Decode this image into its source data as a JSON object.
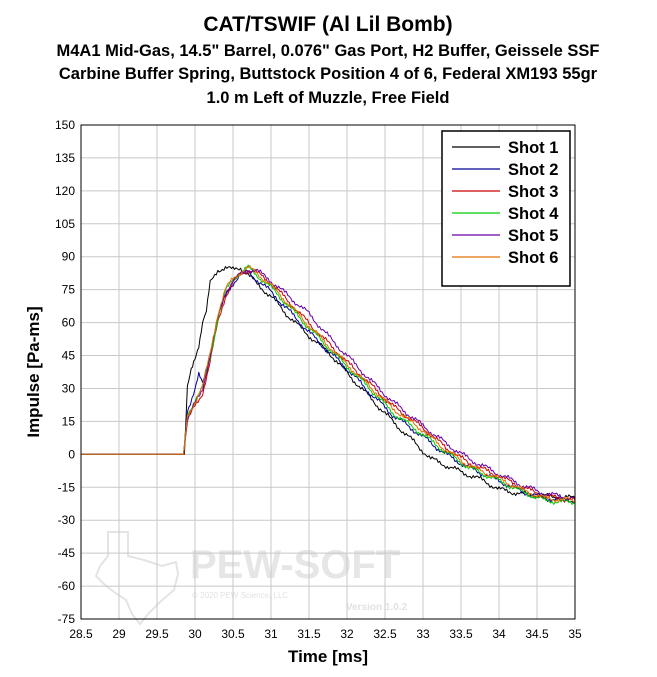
{
  "chart_data": {
    "type": "line",
    "title": "CAT/TSWIF (Al Lil Bomb)",
    "subtitle_lines": [
      "M4A1 Mid-Gas, 14.5\" Barrel, 0.076\" Gas Port, H2 Buffer, Geissele SSF",
      "Carbine Buffer Spring, Buttstock Position 4 of 6, Federal XM193 55gr",
      "1.0 m Left of Muzzle, Free Field"
    ],
    "xlabel": "Time [ms]",
    "ylabel": "Impulse [Pa-ms]",
    "xlim": [
      28.5,
      35
    ],
    "ylim": [
      -75,
      150
    ],
    "x_ticks": [
      "28.5",
      "29",
      "29.5",
      "30",
      "30.5",
      "31",
      "31.5",
      "32",
      "32.5",
      "33",
      "33.5",
      "34",
      "34.5",
      "35"
    ],
    "y_ticks": [
      "150",
      "135",
      "120",
      "105",
      "90",
      "75",
      "60",
      "45",
      "30",
      "15",
      "0",
      "-15",
      "-30",
      "-45",
      "-60",
      "-75"
    ],
    "grid": true,
    "legend_position": "top-right",
    "series": [
      {
        "name": "Shot 1",
        "color": "#000000",
        "x": [
          28.5,
          29.3,
          29.8,
          29.86,
          29.9,
          29.95,
          30.0,
          30.05,
          30.1,
          30.15,
          30.2,
          30.3,
          30.4,
          30.5,
          30.6,
          30.7,
          30.8,
          31.0,
          31.2,
          31.5,
          31.8,
          32.0,
          32.3,
          32.6,
          32.9,
          33.1,
          33.3,
          33.5,
          33.8,
          34.0,
          34.3,
          34.6,
          35.0
        ],
        "y": [
          0,
          0,
          0,
          0,
          30,
          38,
          44,
          50,
          60,
          65,
          78,
          84,
          85,
          84,
          85,
          82,
          78,
          72,
          64,
          54,
          45,
          37,
          26,
          15,
          5,
          -2,
          -5,
          -8,
          -12,
          -16,
          -18,
          -19,
          -20
        ]
      },
      {
        "name": "Shot 2",
        "color": "#000099",
        "x": [
          28.5,
          29.3,
          29.85,
          29.9,
          30.0,
          30.05,
          30.1,
          30.2,
          30.3,
          30.4,
          30.5,
          30.6,
          30.7,
          30.8,
          31.0,
          31.3,
          31.6,
          32.0,
          32.3,
          32.6,
          33.0,
          33.3,
          33.6,
          34.0,
          34.3,
          34.6,
          35.0
        ],
        "y": [
          0,
          0,
          0,
          20,
          30,
          36,
          32,
          45,
          62,
          72,
          78,
          82,
          83,
          80,
          74,
          63,
          52,
          39,
          28,
          18,
          8,
          0,
          -6,
          -12,
          -17,
          -20,
          -21
        ]
      },
      {
        "name": "Shot 3",
        "color": "#cc0000",
        "x": [
          28.5,
          29.3,
          29.85,
          29.9,
          30.0,
          30.1,
          30.2,
          30.3,
          30.4,
          30.5,
          30.6,
          30.7,
          30.8,
          31.0,
          31.3,
          31.6,
          32.0,
          32.3,
          32.6,
          33.0,
          33.3,
          33.6,
          34.0,
          34.3,
          34.6,
          35.0
        ],
        "y": [
          0,
          0,
          0,
          15,
          22,
          28,
          42,
          60,
          72,
          78,
          82,
          84,
          83,
          78,
          67,
          56,
          42,
          32,
          22,
          12,
          3,
          -4,
          -10,
          -15,
          -19,
          -21
        ]
      },
      {
        "name": "Shot 4",
        "color": "#00cc00",
        "x": [
          28.5,
          29.3,
          29.85,
          29.9,
          30.0,
          30.1,
          30.2,
          30.3,
          30.4,
          30.5,
          30.6,
          30.7,
          30.8,
          31.0,
          31.3,
          31.6,
          32.0,
          32.3,
          32.6,
          33.0,
          33.3,
          33.6,
          34.0,
          34.3,
          34.6,
          35.0
        ],
        "y": [
          0,
          0,
          0,
          18,
          25,
          30,
          44,
          62,
          74,
          80,
          83,
          85,
          82,
          76,
          65,
          54,
          40,
          30,
          19,
          9,
          1,
          -6,
          -12,
          -17,
          -21,
          -22
        ]
      },
      {
        "name": "Shot 5",
        "color": "#6600aa",
        "x": [
          28.5,
          29.3,
          29.85,
          29.9,
          30.0,
          30.1,
          30.2,
          30.3,
          30.4,
          30.5,
          30.6,
          30.7,
          30.8,
          31.0,
          31.2,
          31.5,
          31.8,
          32.0,
          32.3,
          32.6,
          33.0,
          33.3,
          33.6,
          34.0,
          34.3,
          34.6,
          35.0
        ],
        "y": [
          0,
          0,
          0,
          16,
          23,
          30,
          45,
          62,
          74,
          79,
          82,
          84,
          84,
          79,
          73,
          64,
          52,
          45,
          34,
          24,
          13,
          5,
          -2,
          -9,
          -14,
          -18,
          -20
        ]
      },
      {
        "name": "Shot 6",
        "color": "#e07000",
        "x": [
          28.5,
          29.3,
          29.85,
          29.9,
          30.0,
          30.1,
          30.2,
          30.3,
          30.4,
          30.5,
          30.6,
          30.7,
          30.8,
          31.0,
          31.3,
          31.6,
          32.0,
          32.3,
          32.6,
          33.0,
          33.3,
          33.6,
          34.0,
          34.3,
          34.6,
          35.0
        ],
        "y": [
          0,
          0,
          0,
          17,
          24,
          31,
          46,
          64,
          75,
          80,
          83,
          85,
          83,
          77,
          66,
          55,
          41,
          31,
          21,
          11,
          2,
          -5,
          -11,
          -16,
          -20,
          -21
        ]
      }
    ]
  },
  "watermark": {
    "brand": "PEW-SOFT",
    "trademark": "TM",
    "copyright": "© 2020 PEW Science, LLC",
    "version": "Version 1.0.2"
  }
}
